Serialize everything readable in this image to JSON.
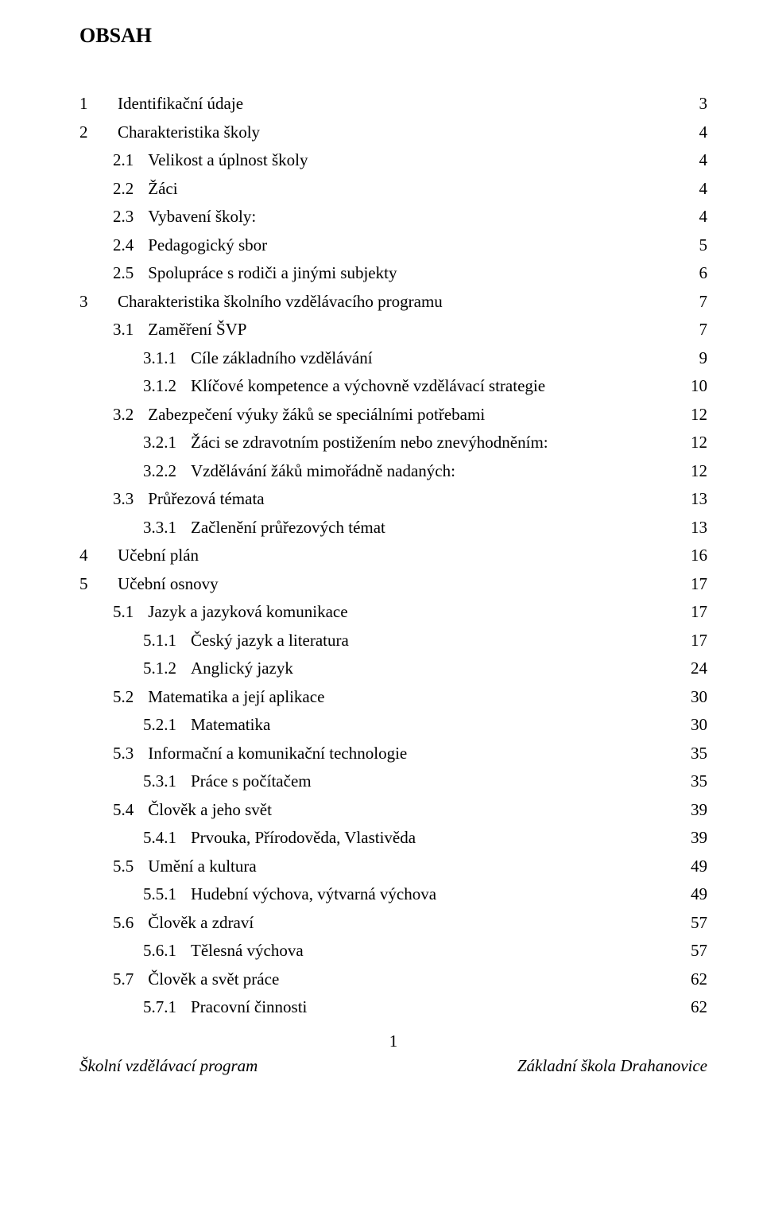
{
  "title": "OBSAH",
  "page_number": "1",
  "footer_left": "Školní vzdělávací program",
  "footer_right": "Základní škola Drahanovice",
  "colors": {
    "text": "#000000",
    "background": "#ffffff"
  },
  "typography": {
    "font_family": "Times New Roman",
    "title_fontsize_pt": 19,
    "title_weight": "bold",
    "body_fontsize_pt": 16,
    "line_height": 1.0
  },
  "toc": [
    {
      "level": 0,
      "num": "1",
      "label": "Identifikační údaje",
      "page": "3"
    },
    {
      "level": 0,
      "num": "2",
      "label": "Charakteristika školy",
      "page": "4"
    },
    {
      "level": 1,
      "num": "2.1",
      "label": "Velikost a úplnost školy",
      "page": "4"
    },
    {
      "level": 1,
      "num": "2.2",
      "label": "Žáci",
      "page": "4"
    },
    {
      "level": 1,
      "num": "2.3",
      "label": "Vybavení školy:",
      "page": "4"
    },
    {
      "level": 1,
      "num": "2.4",
      "label": "Pedagogický sbor",
      "page": "5"
    },
    {
      "level": 1,
      "num": "2.5",
      "label": "Spolupráce s rodiči a jinými subjekty",
      "page": "6"
    },
    {
      "level": 0,
      "num": "3",
      "label": "Charakteristika školního vzdělávacího programu",
      "page": "7"
    },
    {
      "level": 1,
      "num": "3.1",
      "label": "Zaměření ŠVP",
      "page": "7"
    },
    {
      "level": 2,
      "num": "3.1.1",
      "label": "Cíle základního vzdělávání",
      "page": "9"
    },
    {
      "level": 2,
      "num": "3.1.2",
      "label": "Klíčové kompetence a výchovně vzdělávací strategie",
      "page": "10"
    },
    {
      "level": 1,
      "num": "3.2",
      "label": "Zabezpečení výuky žáků se speciálními potřebami",
      "page": "12"
    },
    {
      "level": 2,
      "num": "3.2.1",
      "label": "Žáci se zdravotním postižením nebo znevýhodněním:",
      "page": "12"
    },
    {
      "level": 2,
      "num": "3.2.2",
      "label": "Vzdělávání žáků mimořádně nadaných:",
      "page": "12"
    },
    {
      "level": 1,
      "num": "3.3",
      "label": "Průřezová témata",
      "page": "13"
    },
    {
      "level": 2,
      "num": "3.3.1",
      "label": "Začlenění průřezových témat",
      "page": "13"
    },
    {
      "level": 0,
      "num": "4",
      "label": "Učební plán",
      "page": "16"
    },
    {
      "level": 0,
      "num": "5",
      "label": "Učební osnovy",
      "page": "17"
    },
    {
      "level": 1,
      "num": "5.1",
      "label": "Jazyk a jazyková komunikace",
      "page": "17"
    },
    {
      "level": 2,
      "num": "5.1.1",
      "label": "Český jazyk a literatura",
      "page": "17"
    },
    {
      "level": 2,
      "num": "5.1.2",
      "label": "Anglický jazyk",
      "page": "24"
    },
    {
      "level": 1,
      "num": "5.2",
      "label": "Matematika a její aplikace",
      "page": "30"
    },
    {
      "level": 2,
      "num": "5.2.1",
      "label": "Matematika",
      "page": "30"
    },
    {
      "level": 1,
      "num": "5.3",
      "label": "Informační a komunikační technologie",
      "page": "35"
    },
    {
      "level": 2,
      "num": "5.3.1",
      "label": "Práce s počítačem",
      "page": "35"
    },
    {
      "level": 1,
      "num": "5.4",
      "label": "Člověk a jeho svět",
      "page": "39"
    },
    {
      "level": 2,
      "num": "5.4.1",
      "label": "Prvouka, Přírodověda, Vlastivěda",
      "page": "39"
    },
    {
      "level": 1,
      "num": "5.5",
      "label": "Umění a kultura",
      "page": "49"
    },
    {
      "level": 2,
      "num": "5.5.1",
      "label": "Hudební výchova, výtvarná výchova",
      "page": "49"
    },
    {
      "level": 1,
      "num": "5.6",
      "label": "Člověk a zdraví",
      "page": "57"
    },
    {
      "level": 2,
      "num": "5.6.1",
      "label": "Tělesná výchova",
      "page": "57"
    },
    {
      "level": 1,
      "num": "5.7",
      "label": "Člověk a svět práce",
      "page": "62"
    },
    {
      "level": 2,
      "num": "5.7.1",
      "label": "Pracovní činnosti",
      "page": "62"
    }
  ]
}
